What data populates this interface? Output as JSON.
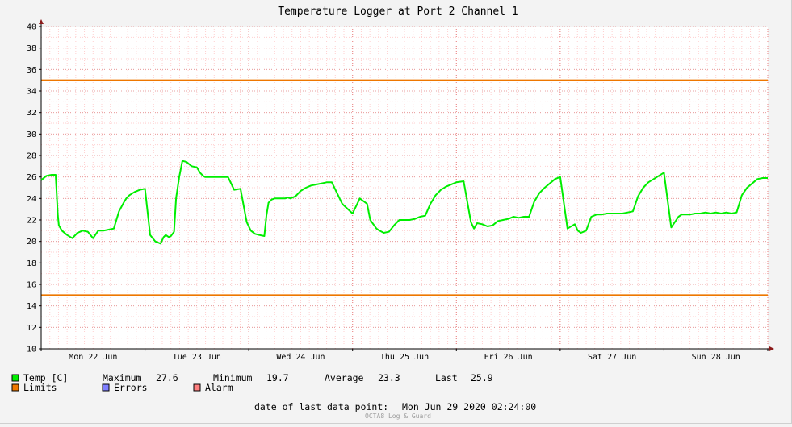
{
  "chart_data": {
    "type": "line",
    "title": "Temperature Logger at Port 2 Channel 1",
    "ylim": [
      10,
      40
    ],
    "yticks": [
      10,
      12,
      14,
      16,
      18,
      20,
      22,
      24,
      26,
      28,
      30,
      32,
      34,
      36,
      38,
      40
    ],
    "xlim": [
      0,
      7
    ],
    "days": [
      {
        "label": "Mon 22 Jun",
        "center": 0.5
      },
      {
        "label": "Tue 23 Jun",
        "center": 1.5
      },
      {
        "label": "Wed 24 Jun",
        "center": 2.5
      },
      {
        "label": "Thu 25 Jun",
        "center": 3.5
      },
      {
        "label": "Fri 26 Jun",
        "center": 4.5
      },
      {
        "label": "Sat 27 Jun",
        "center": 5.5
      },
      {
        "label": "Sun 28 Jun",
        "center": 6.5
      }
    ],
    "limits": {
      "upper": 35,
      "lower": 15
    },
    "colors": {
      "temp": "#00ee00",
      "limits": "#ee7700",
      "errors": "#7f7fff",
      "alarm": "#ff7f7f",
      "grid": "#ffcfcf"
    },
    "series": [
      {
        "name": "Temp [C]",
        "x": [
          0.0,
          0.05,
          0.1,
          0.14,
          0.16,
          0.17,
          0.2,
          0.25,
          0.3,
          0.35,
          0.4,
          0.45,
          0.5,
          0.55,
          0.6,
          0.65,
          0.7,
          0.75,
          0.8,
          0.82,
          0.85,
          0.9,
          0.95,
          1.0,
          1.05,
          1.1,
          1.15,
          1.18,
          1.2,
          1.23,
          1.25,
          1.28,
          1.3,
          1.33,
          1.36,
          1.4,
          1.45,
          1.5,
          1.53,
          1.56,
          1.58,
          1.62,
          1.67,
          1.72,
          1.76,
          1.8,
          1.86,
          1.92,
          1.98,
          2.02,
          2.06,
          2.1,
          2.15,
          2.17,
          2.19,
          2.22,
          2.25,
          2.3,
          2.35,
          2.38,
          2.4,
          2.45,
          2.5,
          2.55,
          2.6,
          2.65,
          2.7,
          2.75,
          2.8,
          2.9,
          3.0,
          3.07,
          3.14,
          3.17,
          3.2,
          3.23,
          3.26,
          3.3,
          3.35,
          3.4,
          3.45,
          3.5,
          3.55,
          3.6,
          3.65,
          3.7,
          3.75,
          3.8,
          3.85,
          3.9,
          4.0,
          4.07,
          4.14,
          4.17,
          4.2,
          4.25,
          4.3,
          4.35,
          4.4,
          4.45,
          4.5,
          4.55,
          4.6,
          4.65,
          4.7,
          4.75,
          4.8,
          4.85,
          4.9,
          4.95,
          5.0,
          5.07,
          5.14,
          5.17,
          5.2,
          5.25,
          5.3,
          5.35,
          5.4,
          5.45,
          5.5,
          5.55,
          5.6,
          5.65,
          5.7,
          5.75,
          5.8,
          5.85,
          5.9,
          5.95,
          6.0,
          6.07,
          6.14,
          6.17,
          6.2,
          6.25,
          6.3,
          6.35,
          6.4,
          6.45,
          6.5,
          6.55,
          6.6,
          6.65,
          6.7,
          6.75,
          6.8,
          6.85,
          6.9,
          6.95,
          7.0
        ],
        "values": [
          25.7,
          26.1,
          26.2,
          26.2,
          22.5,
          21.5,
          21.0,
          20.6,
          20.3,
          20.8,
          21.0,
          20.9,
          20.3,
          21.0,
          21.0,
          21.1,
          21.2,
          22.8,
          23.7,
          24.0,
          24.3,
          24.6,
          24.8,
          24.9,
          20.6,
          20.0,
          19.8,
          20.4,
          20.6,
          20.4,
          20.5,
          20.9,
          24.0,
          26.0,
          27.5,
          27.4,
          27.0,
          26.9,
          26.4,
          26.1,
          26.0,
          26.0,
          26.0,
          26.0,
          26.0,
          26.0,
          24.8,
          24.9,
          21.8,
          21.0,
          20.7,
          20.6,
          20.5,
          22.4,
          23.6,
          23.9,
          24.0,
          24.0,
          24.0,
          24.1,
          24.0,
          24.2,
          24.7,
          25.0,
          25.2,
          25.3,
          25.4,
          25.5,
          25.5,
          23.5,
          22.6,
          24.0,
          23.5,
          22.0,
          21.6,
          21.2,
          21.0,
          20.8,
          20.9,
          21.5,
          22.0,
          22.0,
          22.0,
          22.1,
          22.3,
          22.4,
          23.5,
          24.3,
          24.8,
          25.1,
          25.5,
          25.6,
          21.8,
          21.2,
          21.7,
          21.6,
          21.4,
          21.5,
          21.9,
          22.0,
          22.1,
          22.3,
          22.2,
          22.3,
          22.3,
          23.7,
          24.5,
          25.0,
          25.4,
          25.8,
          26.0,
          21.2,
          21.6,
          21.0,
          20.8,
          21.0,
          22.3,
          22.5,
          22.5,
          22.6,
          22.6,
          22.6,
          22.6,
          22.7,
          22.8,
          24.2,
          25.0,
          25.5,
          25.8,
          26.1,
          26.4,
          21.3,
          22.3,
          22.5,
          22.5,
          22.5,
          22.6,
          22.6,
          22.7,
          22.6,
          22.7,
          22.6,
          22.7,
          22.6,
          22.7,
          24.3,
          25.0,
          25.4,
          25.8,
          25.9,
          25.9
        ]
      }
    ]
  },
  "legend": {
    "temp_label": "Temp [C]",
    "max_label": "Maximum",
    "max_value": "27.6",
    "min_label": "Minimum",
    "min_value": "19.7",
    "avg_label": "Average",
    "avg_value": "23.3",
    "last_label": "Last",
    "last_value": "25.9",
    "limits_label": "Limits",
    "errors_label": "Errors",
    "alarm_label": "Alarm"
  },
  "footer": {
    "last_point_label": "date of last data point:",
    "last_point_value": "Mon Jun 29 2020 02:24:00",
    "credit": "OCTA8 Log & Guard"
  }
}
